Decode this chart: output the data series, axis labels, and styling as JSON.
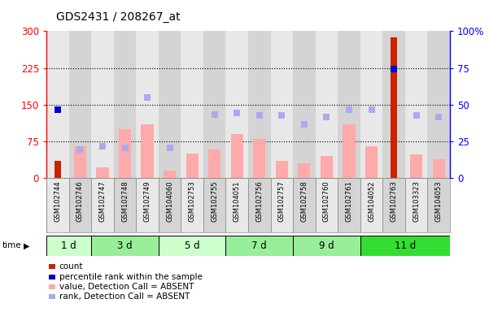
{
  "title": "GDS2431 / 208267_at",
  "samples": [
    "GSM102744",
    "GSM102746",
    "GSM102747",
    "GSM102748",
    "GSM102749",
    "GSM104060",
    "GSM102753",
    "GSM102755",
    "GSM104051",
    "GSM102756",
    "GSM102757",
    "GSM102758",
    "GSM102760",
    "GSM102761",
    "GSM104052",
    "GSM102763",
    "GSM103323",
    "GSM104053"
  ],
  "time_groups": [
    {
      "label": "1 d",
      "start": 0,
      "end": 2,
      "color": "#ccffcc"
    },
    {
      "label": "3 d",
      "start": 2,
      "end": 5,
      "color": "#99ee99"
    },
    {
      "label": "5 d",
      "start": 5,
      "end": 8,
      "color": "#ccffcc"
    },
    {
      "label": "7 d",
      "start": 8,
      "end": 11,
      "color": "#99ee99"
    },
    {
      "label": "9 d",
      "start": 11,
      "end": 14,
      "color": "#99ee99"
    },
    {
      "label": "11 d",
      "start": 14,
      "end": 18,
      "color": "#33dd33"
    }
  ],
  "count_bars": [
    35,
    0,
    0,
    0,
    0,
    0,
    0,
    0,
    0,
    0,
    0,
    0,
    0,
    0,
    0,
    288,
    0,
    0
  ],
  "percentile_rank_dots": [
    140,
    null,
    null,
    null,
    null,
    null,
    null,
    null,
    null,
    null,
    null,
    null,
    null,
    null,
    null,
    222,
    null,
    null
  ],
  "value_absent_bars": [
    0,
    65,
    22,
    100,
    110,
    15,
    50,
    58,
    90,
    80,
    35,
    30,
    45,
    110,
    65,
    0,
    48,
    38
  ],
  "rank_absent_dots": [
    null,
    58,
    65,
    62,
    165,
    62,
    null,
    130,
    132,
    128,
    128,
    110,
    125,
    140,
    140,
    null,
    128,
    125
  ],
  "left_ylim": [
    0,
    300
  ],
  "right_ylim": [
    0,
    100
  ],
  "left_yticks": [
    0,
    75,
    150,
    225,
    300
  ],
  "right_yticks": [
    0,
    25,
    50,
    75,
    100
  ],
  "right_yticklabels": [
    "0",
    "25",
    "50",
    "75",
    "100%"
  ],
  "count_color": "#cc2200",
  "percentile_color": "#0000cc",
  "value_absent_color": "#ffaaaa",
  "rank_absent_color": "#aaaaee",
  "bg_color": "#ffffff",
  "col_colors": [
    "#e8e8e8",
    "#d4d4d4"
  ],
  "legend_items": [
    {
      "label": "count",
      "color": "#cc2200"
    },
    {
      "label": "percentile rank within the sample",
      "color": "#0000cc"
    },
    {
      "label": "value, Detection Call = ABSENT",
      "color": "#ffaaaa"
    },
    {
      "label": "rank, Detection Call = ABSENT",
      "color": "#aaaaee"
    }
  ]
}
